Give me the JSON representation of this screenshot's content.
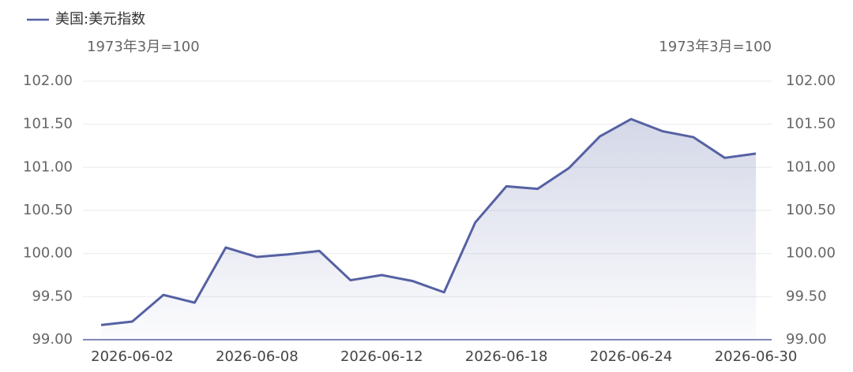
{
  "chart_data": {
    "type": "line",
    "legend": "美国:美元指数",
    "legend_position": "top-left",
    "y_label": "1973年3月=100",
    "y2_label": "1973年3月=100",
    "categories": [
      null,
      "2026-06-02",
      null,
      null,
      null,
      "2026-06-08",
      null,
      null,
      null,
      "2026-06-12",
      null,
      null,
      null,
      "2026-06-18",
      null,
      null,
      null,
      "2026-06-24",
      null,
      null,
      null,
      "2026-06-30"
    ],
    "series": [
      {
        "name": "美国:美元指数",
        "color": "#5561a2",
        "values": [
          99.17,
          99.21,
          99.52,
          99.43,
          100.07,
          99.96,
          99.99,
          100.03,
          99.69,
          99.75,
          99.68,
          99.55,
          100.36,
          100.78,
          100.75,
          100.99,
          101.36,
          101.56,
          101.42,
          101.35,
          101.11,
          101.16
        ]
      }
    ],
    "area_fill": true,
    "ylim": [
      99,
      102
    ],
    "yticks": [
      {
        "value": 99,
        "label": "99.00"
      },
      {
        "value": 99.5,
        "label": "99.50"
      },
      {
        "value": 100,
        "label": "100.00"
      },
      {
        "value": 100.5,
        "label": "100.50"
      },
      {
        "value": 101,
        "label": "101.00"
      },
      {
        "value": 101.5,
        "label": "101.50"
      },
      {
        "value": 102,
        "label": "102.00"
      }
    ],
    "y2lim": [
      99,
      102
    ],
    "y2ticks": [
      {
        "value": 99,
        "label": "99.00"
      },
      {
        "value": 99.5,
        "label": "99.50"
      },
      {
        "value": 100,
        "label": "100.00"
      },
      {
        "value": 100.5,
        "label": "100.50"
      },
      {
        "value": 101,
        "label": "101.00"
      },
      {
        "value": 101.5,
        "label": "101.50"
      },
      {
        "value": 102,
        "label": "102.00"
      }
    ],
    "grid": true
  }
}
